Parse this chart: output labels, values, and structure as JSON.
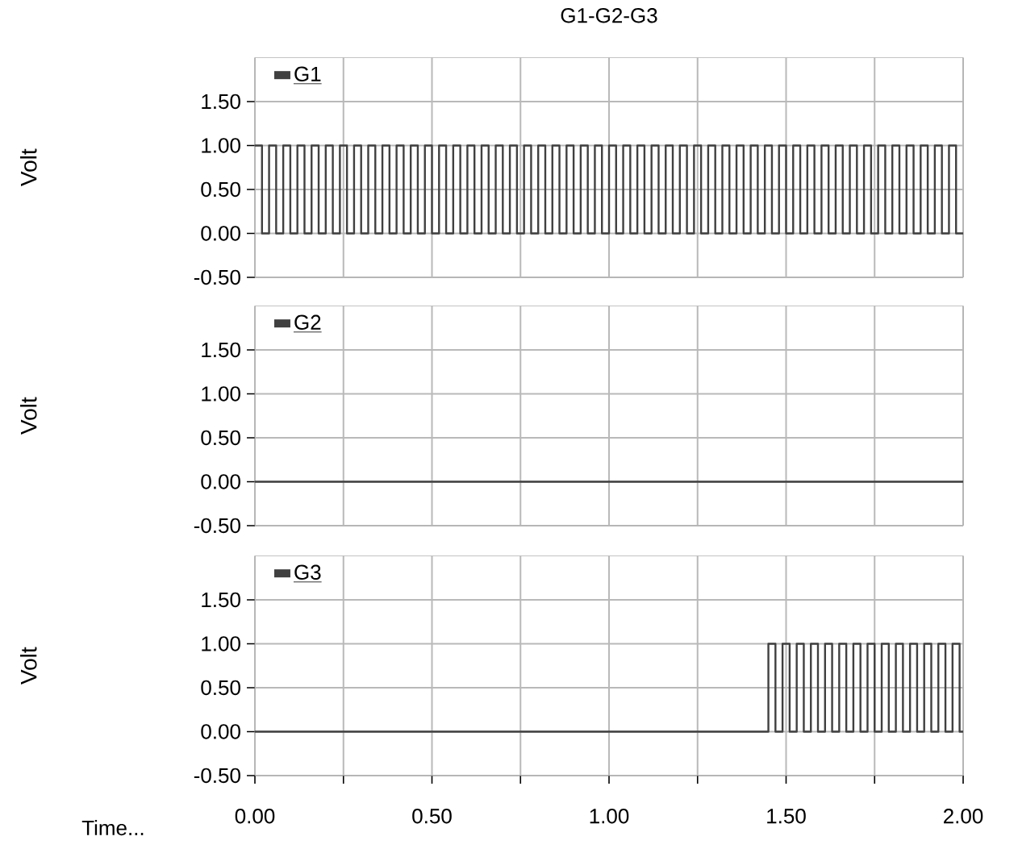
{
  "chart_data": [
    {
      "type": "step",
      "title": "G1-G2-G3",
      "ylabel": "Volt",
      "xlim": [
        0,
        2
      ],
      "ylim": [
        -0.5,
        2
      ],
      "xticks": [
        {
          "value": 0,
          "label": null
        },
        {
          "value": 0.25,
          "label": null
        },
        {
          "value": 0.5,
          "label": null
        },
        {
          "value": 0.75,
          "label": null
        },
        {
          "value": 1,
          "label": null
        },
        {
          "value": 1.25,
          "label": null
        },
        {
          "value": 1.5,
          "label": null
        },
        {
          "value": 1.75,
          "label": null
        },
        {
          "value": 2,
          "label": null
        }
      ],
      "yticks": [
        {
          "value": -0.5,
          "label": "-0.50"
        },
        {
          "value": 0,
          "label": "0.00"
        },
        {
          "value": 0.5,
          "label": "0.50"
        },
        {
          "value": 1,
          "label": "1.00"
        },
        {
          "value": 1.5,
          "label": "1.50"
        }
      ],
      "grid": true,
      "legend": "top left",
      "tick_labels": "y",
      "series": [
        {
          "name": "G1",
          "color": "#404040",
          "x": [
            0,
            0.02,
            0.04,
            0.06,
            0.08,
            0.1,
            0.12,
            0.14,
            0.16,
            0.18,
            0.2,
            0.22,
            0.24,
            0.26,
            0.28,
            0.3,
            0.32,
            0.34,
            0.36,
            0.38,
            0.4,
            0.42,
            0.44,
            0.46,
            0.48,
            0.5,
            0.52,
            0.54,
            0.56,
            0.58,
            0.6,
            0.62,
            0.64,
            0.66,
            0.68,
            0.7,
            0.72,
            0.74,
            0.76,
            0.78,
            0.8,
            0.82,
            0.84,
            0.86,
            0.88,
            0.9,
            0.92,
            0.94,
            0.96,
            0.98,
            1,
            1.02,
            1.04,
            1.06,
            1.08,
            1.1,
            1.12,
            1.14,
            1.16,
            1.18,
            1.2,
            1.22,
            1.24,
            1.26,
            1.28,
            1.3,
            1.32,
            1.34,
            1.36,
            1.38,
            1.4,
            1.42,
            1.44,
            1.46,
            1.48,
            1.5,
            1.52,
            1.54,
            1.56,
            1.58,
            1.6,
            1.62,
            1.64,
            1.66,
            1.68,
            1.7,
            1.72,
            1.74,
            1.76,
            1.78,
            1.8,
            1.82,
            1.84,
            1.86,
            1.88,
            1.9,
            1.92,
            1.94,
            1.96,
            1.98,
            2
          ],
          "values": [
            1,
            0,
            1,
            0,
            1,
            0,
            1,
            0,
            1,
            0,
            1,
            0,
            1,
            0,
            1,
            0,
            1,
            0,
            1,
            0,
            1,
            0,
            1,
            0,
            1,
            0,
            1,
            0,
            1,
            0,
            1,
            0,
            1,
            0,
            1,
            0,
            1,
            0,
            1,
            0,
            1,
            0,
            1,
            0,
            1,
            0,
            1,
            0,
            1,
            0,
            1,
            0,
            1,
            0,
            1,
            0,
            1,
            0,
            1,
            0,
            1,
            0,
            1,
            0,
            1,
            0,
            1,
            0,
            1,
            0,
            1,
            0,
            1,
            0,
            1,
            0,
            1,
            0,
            1,
            0,
            1,
            0,
            1,
            0,
            1,
            0,
            1,
            0,
            1,
            0,
            1,
            0,
            1,
            0,
            1,
            0,
            1,
            0,
            1,
            0,
            0
          ]
        }
      ]
    },
    {
      "type": "step",
      "ylabel": "Volt",
      "xlim": [
        0,
        2
      ],
      "ylim": [
        -0.5,
        2
      ],
      "xticks": [
        {
          "value": 0,
          "label": null
        },
        {
          "value": 0.25,
          "label": null
        },
        {
          "value": 0.5,
          "label": null
        },
        {
          "value": 0.75,
          "label": null
        },
        {
          "value": 1,
          "label": null
        },
        {
          "value": 1.25,
          "label": null
        },
        {
          "value": 1.5,
          "label": null
        },
        {
          "value": 1.75,
          "label": null
        },
        {
          "value": 2,
          "label": null
        }
      ],
      "yticks": [
        {
          "value": -0.5,
          "label": "-0.50"
        },
        {
          "value": 0,
          "label": "0.00"
        },
        {
          "value": 0.5,
          "label": "0.50"
        },
        {
          "value": 1,
          "label": "1.00"
        },
        {
          "value": 1.5,
          "label": "1.50"
        }
      ],
      "grid": true,
      "legend": "top left",
      "tick_labels": "y",
      "series": [
        {
          "name": "G2",
          "color": "#404040",
          "x": [
            0,
            2
          ],
          "values": [
            0,
            0
          ]
        }
      ]
    },
    {
      "type": "step",
      "ylabel": "Volt",
      "xlabel": "Time...",
      "xlim": [
        0,
        2
      ],
      "ylim": [
        -0.5,
        2
      ],
      "xticks": [
        {
          "value": 0,
          "label": "0.00"
        },
        {
          "value": 0.25,
          "label": null
        },
        {
          "value": 0.5,
          "label": "0.50"
        },
        {
          "value": 0.75,
          "label": null
        },
        {
          "value": 1,
          "label": "1.00"
        },
        {
          "value": 1.25,
          "label": null
        },
        {
          "value": 1.5,
          "label": "1.50"
        },
        {
          "value": 1.75,
          "label": null
        },
        {
          "value": 2,
          "label": "2.00"
        }
      ],
      "yticks": [
        {
          "value": -0.5,
          "label": "-0.50"
        },
        {
          "value": 0,
          "label": "0.00"
        },
        {
          "value": 0.5,
          "label": "0.50"
        },
        {
          "value": 1,
          "label": "1.00"
        },
        {
          "value": 1.5,
          "label": "1.50"
        }
      ],
      "grid": true,
      "legend": "top left",
      "series": [
        {
          "name": "G3",
          "color": "#404040",
          "x": [
            0,
            1.45,
            1.47,
            1.49,
            1.51,
            1.53,
            1.55,
            1.57,
            1.59,
            1.61,
            1.63,
            1.65,
            1.67,
            1.69,
            1.71,
            1.73,
            1.75,
            1.77,
            1.79,
            1.81,
            1.83,
            1.85,
            1.87,
            1.89,
            1.91,
            1.93,
            1.95,
            1.97,
            1.99,
            2
          ],
          "values": [
            0,
            1,
            0,
            1,
            0,
            1,
            0,
            1,
            0,
            1,
            0,
            1,
            0,
            1,
            0,
            1,
            0,
            1,
            0,
            1,
            0,
            1,
            0,
            1,
            0,
            1,
            0,
            1,
            0,
            0
          ]
        }
      ]
    }
  ]
}
